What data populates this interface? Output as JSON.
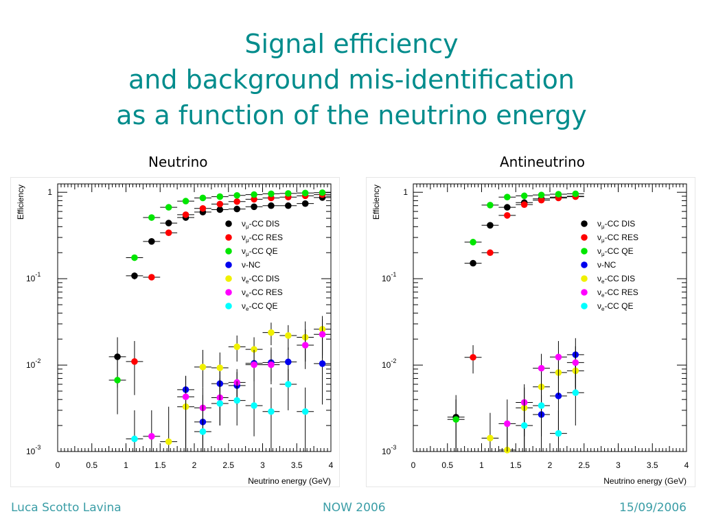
{
  "slide": {
    "title_lines": [
      "Signal efficiency",
      "and background mis-identification",
      "as a function of the neutrino energy"
    ],
    "footer": {
      "author": "Luca Scotto Lavina",
      "event": "NOW 2006",
      "date": "15/09/2006"
    }
  },
  "chart_data": [
    {
      "type": "scatter",
      "panel_label": "Neutrino",
      "xlabel": "Neutrino energy (GeV)",
      "ylabel": "Efficiency",
      "x_scale": "linear",
      "y_scale": "log",
      "xlim": [
        0,
        4
      ],
      "ylim": [
        0.001,
        1.25
      ],
      "x_ticks": [
        "0",
        "0.5",
        "1",
        "1.5",
        "2",
        "2.5",
        "3",
        "3.5",
        "4"
      ],
      "y_ticks": [
        {
          "value": 1,
          "base": "1",
          "exp": ""
        },
        {
          "value": 0.1,
          "base": "10",
          "exp": "-1"
        },
        {
          "value": 0.01,
          "base": "10",
          "exp": "-2"
        },
        {
          "value": 0.001,
          "base": "10",
          "exp": "-3"
        }
      ],
      "legend_position": "top-right",
      "series": [
        {
          "name": "νμ-CC DIS",
          "legend": {
            "sym": "ν",
            "sub": "μ",
            "rest": "-CC DIS"
          },
          "color": "#000000",
          "points": [
            {
              "x": 0.875,
              "y": 0.0125,
              "lo": 0.0055,
              "hi": 0.021
            },
            {
              "x": 1.125,
              "y": 0.108,
              "lo": 0.098,
              "hi": 0.118
            },
            {
              "x": 1.375,
              "y": 0.27
            },
            {
              "x": 1.625,
              "y": 0.44
            },
            {
              "x": 1.875,
              "y": 0.51
            },
            {
              "x": 2.125,
              "y": 0.59
            },
            {
              "x": 2.375,
              "y": 0.63
            },
            {
              "x": 2.625,
              "y": 0.64
            },
            {
              "x": 2.875,
              "y": 0.68
            },
            {
              "x": 3.125,
              "y": 0.7
            },
            {
              "x": 3.375,
              "y": 0.7
            },
            {
              "x": 3.625,
              "y": 0.74
            },
            {
              "x": 3.875,
              "y": 0.87
            }
          ]
        },
        {
          "name": "νμ-CC RES",
          "legend": {
            "sym": "ν",
            "sub": "μ",
            "rest": "-CC RES"
          },
          "color": "#ff0000",
          "points": [
            {
              "x": 1.125,
              "y": 0.011,
              "lo": 0.0045,
              "hi": 0.019
            },
            {
              "x": 1.375,
              "y": 0.104
            },
            {
              "x": 1.625,
              "y": 0.34
            },
            {
              "x": 1.875,
              "y": 0.55
            },
            {
              "x": 2.125,
              "y": 0.65
            },
            {
              "x": 2.375,
              "y": 0.73
            },
            {
              "x": 2.625,
              "y": 0.78
            },
            {
              "x": 2.875,
              "y": 0.83
            },
            {
              "x": 3.125,
              "y": 0.86
            },
            {
              "x": 3.375,
              "y": 0.88
            },
            {
              "x": 3.625,
              "y": 0.91
            },
            {
              "x": 3.875,
              "y": 0.94
            }
          ]
        },
        {
          "name": "νμ-CC QE",
          "legend": {
            "sym": "ν",
            "sub": "μ",
            "rest": "-CC QE"
          },
          "color": "#00e600",
          "points": [
            {
              "x": 0.875,
              "y": 0.0067,
              "lo": 0.0027,
              "hi": 0.012
            },
            {
              "x": 1.125,
              "y": 0.175
            },
            {
              "x": 1.375,
              "y": 0.51
            },
            {
              "x": 1.625,
              "y": 0.67
            },
            {
              "x": 1.875,
              "y": 0.79
            },
            {
              "x": 2.125,
              "y": 0.86
            },
            {
              "x": 2.375,
              "y": 0.89
            },
            {
              "x": 2.625,
              "y": 0.92
            },
            {
              "x": 2.875,
              "y": 0.94
            },
            {
              "x": 3.125,
              "y": 0.96
            },
            {
              "x": 3.375,
              "y": 0.97
            },
            {
              "x": 3.625,
              "y": 0.98
            },
            {
              "x": 3.875,
              "y": 0.99
            }
          ]
        },
        {
          "name": "ν-NC",
          "legend": {
            "sym": "ν",
            "sub": "",
            "rest": "-NC"
          },
          "color": "#0000ee",
          "points": [
            {
              "x": 1.875,
              "y": 0.0052,
              "lo": 0.001,
              "hi": 0.0075
            },
            {
              "x": 2.125,
              "y": 0.0022,
              "lo": 0.001,
              "hi": 0.0045
            },
            {
              "x": 2.375,
              "y": 0.0061,
              "lo": 0.0035,
              "hi": 0.0085
            },
            {
              "x": 2.625,
              "y": 0.0058,
              "lo": 0.0035,
              "hi": 0.0083
            },
            {
              "x": 2.875,
              "y": 0.0105,
              "lo": 0.006,
              "hi": 0.016
            },
            {
              "x": 3.125,
              "y": 0.0107,
              "lo": 0.006,
              "hi": 0.016
            },
            {
              "x": 3.375,
              "y": 0.0109,
              "lo": 0.006,
              "hi": 0.016
            },
            {
              "x": 3.875,
              "y": 0.0104,
              "lo": 0.0035,
              "hi": 0.022
            }
          ]
        },
        {
          "name": "νe-CC DIS",
          "legend": {
            "sym": "ν",
            "sub": "e",
            "rest": "-CC DIS"
          },
          "color": "#f0f000",
          "points": [
            {
              "x": 1.625,
              "y": 0.0013,
              "lo": 0.001,
              "hi": 0.0033
            },
            {
              "x": 1.875,
              "y": 0.0033,
              "lo": 0.001,
              "hi": 0.0055
            },
            {
              "x": 2.125,
              "y": 0.0095,
              "lo": 0.0055,
              "hi": 0.015
            },
            {
              "x": 2.375,
              "y": 0.0093,
              "lo": 0.005,
              "hi": 0.014
            },
            {
              "x": 2.625,
              "y": 0.0163,
              "lo": 0.011,
              "hi": 0.022
            },
            {
              "x": 2.875,
              "y": 0.0152,
              "lo": 0.01,
              "hi": 0.021
            },
            {
              "x": 3.125,
              "y": 0.0238,
              "lo": 0.017,
              "hi": 0.031
            },
            {
              "x": 3.375,
              "y": 0.022,
              "lo": 0.015,
              "hi": 0.029
            },
            {
              "x": 3.625,
              "y": 0.021,
              "lo": 0.011,
              "hi": 0.032
            },
            {
              "x": 3.875,
              "y": 0.026,
              "lo": 0.013,
              "hi": 0.037
            }
          ]
        },
        {
          "name": "νe-CC RES",
          "legend": {
            "sym": "ν",
            "sub": "e",
            "rest": "-CC RES"
          },
          "color": "#ff00ff",
          "points": [
            {
              "x": 1.375,
              "y": 0.0015,
              "lo": 0.001,
              "hi": 0.003
            },
            {
              "x": 1.875,
              "y": 0.0043,
              "lo": 0.001,
              "hi": 0.0075
            },
            {
              "x": 2.125,
              "y": 0.0032,
              "lo": 0.001,
              "hi": 0.0055
            },
            {
              "x": 2.375,
              "y": 0.0042,
              "lo": 0.002,
              "hi": 0.007
            },
            {
              "x": 2.625,
              "y": 0.0063,
              "lo": 0.004,
              "hi": 0.009
            },
            {
              "x": 2.875,
              "y": 0.0101,
              "lo": 0.0065,
              "hi": 0.015
            },
            {
              "x": 3.125,
              "y": 0.0101,
              "lo": 0.0065,
              "hi": 0.015
            },
            {
              "x": 3.625,
              "y": 0.017,
              "lo": 0.009,
              "hi": 0.026
            },
            {
              "x": 3.875,
              "y": 0.0227,
              "lo": 0.012,
              "hi": 0.034
            }
          ]
        },
        {
          "name": "νe-CC QE",
          "legend": {
            "sym": "ν",
            "sub": "e",
            "rest": "-CC QE"
          },
          "color": "#00ffff",
          "points": [
            {
              "x": 1.125,
              "y": 0.0014,
              "lo": 0.001,
              "hi": 0.003
            },
            {
              "x": 2.125,
              "y": 0.0017,
              "lo": 0.001,
              "hi": 0.0035
            },
            {
              "x": 2.375,
              "y": 0.0036,
              "lo": 0.002,
              "hi": 0.006
            },
            {
              "x": 2.625,
              "y": 0.0039,
              "lo": 0.002,
              "hi": 0.0065
            },
            {
              "x": 2.875,
              "y": 0.0034,
              "lo": 0.0015,
              "hi": 0.006
            },
            {
              "x": 3.125,
              "y": 0.0029,
              "lo": 0.001,
              "hi": 0.0055
            },
            {
              "x": 3.375,
              "y": 0.006,
              "lo": 0.003,
              "hi": 0.009
            },
            {
              "x": 3.625,
              "y": 0.0029,
              "lo": 0.001,
              "hi": 0.0055
            }
          ]
        }
      ]
    },
    {
      "type": "scatter",
      "panel_label": "Antineutrino",
      "xlabel": "Neutrino energy (GeV)",
      "ylabel": "Efficiency",
      "x_scale": "linear",
      "y_scale": "log",
      "xlim": [
        0,
        4
      ],
      "ylim": [
        0.001,
        1.25
      ],
      "x_ticks": [
        "0",
        "0.5",
        "1",
        "1.5",
        "2",
        "2.5",
        "3",
        "3.5",
        "4"
      ],
      "y_ticks": [
        {
          "value": 1,
          "base": "1",
          "exp": ""
        },
        {
          "value": 0.1,
          "base": "10",
          "exp": "-1"
        },
        {
          "value": 0.01,
          "base": "10",
          "exp": "-2"
        },
        {
          "value": 0.001,
          "base": "10",
          "exp": "-3"
        }
      ],
      "legend_position": "top-right",
      "series": [
        {
          "name": "νμ-CC DIS",
          "legend": {
            "sym": "ν",
            "sub": "μ",
            "rest": "-CC DIS"
          },
          "color": "#000000",
          "points": [
            {
              "x": 0.625,
              "y": 0.0025,
              "lo": 0.001,
              "hi": 0.0045
            },
            {
              "x": 0.875,
              "y": 0.151
            },
            {
              "x": 1.125,
              "y": 0.415
            },
            {
              "x": 1.375,
              "y": 0.67
            },
            {
              "x": 1.625,
              "y": 0.76
            },
            {
              "x": 1.875,
              "y": 0.84
            },
            {
              "x": 2.125,
              "y": 0.88
            },
            {
              "x": 2.375,
              "y": 0.9
            }
          ]
        },
        {
          "name": "νμ-CC RES",
          "legend": {
            "sym": "ν",
            "sub": "μ",
            "rest": "-CC RES"
          },
          "color": "#ff0000",
          "points": [
            {
              "x": 0.875,
              "y": 0.0123,
              "lo": 0.008,
              "hi": 0.017
            },
            {
              "x": 1.125,
              "y": 0.2
            },
            {
              "x": 1.375,
              "y": 0.54
            },
            {
              "x": 1.625,
              "y": 0.72
            },
            {
              "x": 1.875,
              "y": 0.81
            },
            {
              "x": 2.125,
              "y": 0.86
            },
            {
              "x": 2.375,
              "y": 0.89
            }
          ]
        },
        {
          "name": "νμ-CC QE",
          "legend": {
            "sym": "ν",
            "sub": "μ",
            "rest": "-CC QE"
          },
          "color": "#00e600",
          "points": [
            {
              "x": 0.625,
              "y": 0.00235,
              "lo": 0.001,
              "hi": 0.004
            },
            {
              "x": 0.875,
              "y": 0.265
            },
            {
              "x": 1.125,
              "y": 0.71
            },
            {
              "x": 1.375,
              "y": 0.88
            },
            {
              "x": 1.625,
              "y": 0.91
            },
            {
              "x": 1.875,
              "y": 0.93
            },
            {
              "x": 2.125,
              "y": 0.95
            },
            {
              "x": 2.375,
              "y": 0.96
            }
          ]
        },
        {
          "name": "ν-NC",
          "legend": {
            "sym": "ν",
            "sub": "",
            "rest": "-NC"
          },
          "color": "#0000ee",
          "points": [
            {
              "x": 1.875,
              "y": 0.00268,
              "lo": 0.001,
              "hi": 0.0045
            },
            {
              "x": 2.125,
              "y": 0.0044,
              "lo": 0.0015,
              "hi": 0.0075
            },
            {
              "x": 2.375,
              "y": 0.0132,
              "lo": 0.007,
              "hi": 0.0205
            }
          ]
        },
        {
          "name": "νe-CC DIS",
          "legend": {
            "sym": "ν",
            "sub": "e",
            "rest": "-CC DIS"
          },
          "color": "#f0f000",
          "points": [
            {
              "x": 1.125,
              "y": 0.00143,
              "lo": 0.001,
              "hi": 0.0028
            },
            {
              "x": 1.375,
              "y": 0.00104,
              "lo": 0.001,
              "hi": 0.002
            },
            {
              "x": 1.625,
              "y": 0.0032,
              "lo": 0.001,
              "hi": 0.0055
            },
            {
              "x": 1.875,
              "y": 0.0056,
              "lo": 0.003,
              "hi": 0.0085
            },
            {
              "x": 2.125,
              "y": 0.0082,
              "lo": 0.0045,
              "hi": 0.0125
            },
            {
              "x": 2.375,
              "y": 0.0086,
              "lo": 0.0045,
              "hi": 0.0135
            }
          ]
        },
        {
          "name": "νe-CC RES",
          "legend": {
            "sym": "ν",
            "sub": "e",
            "rest": "-CC RES"
          },
          "color": "#ff00ff",
          "points": [
            {
              "x": 1.375,
              "y": 0.0021,
              "lo": 0.001,
              "hi": 0.004
            },
            {
              "x": 1.625,
              "y": 0.0037,
              "lo": 0.0015,
              "hi": 0.006
            },
            {
              "x": 1.875,
              "y": 0.0092,
              "lo": 0.0055,
              "hi": 0.0135
            },
            {
              "x": 2.125,
              "y": 0.0124,
              "lo": 0.007,
              "hi": 0.019
            },
            {
              "x": 2.375,
              "y": 0.0107,
              "lo": 0.0055,
              "hi": 0.0165
            }
          ]
        },
        {
          "name": "νe-CC QE",
          "legend": {
            "sym": "ν",
            "sub": "e",
            "rest": "-CC QE"
          },
          "color": "#00ffff",
          "points": [
            {
              "x": 1.625,
              "y": 0.002,
              "lo": 0.001,
              "hi": 0.004
            },
            {
              "x": 1.875,
              "y": 0.0034,
              "lo": 0.0015,
              "hi": 0.0055
            },
            {
              "x": 2.125,
              "y": 0.00162,
              "lo": 0.001,
              "hi": 0.003
            },
            {
              "x": 2.375,
              "y": 0.0048,
              "lo": 0.002,
              "hi": 0.0085
            }
          ]
        }
      ]
    }
  ]
}
